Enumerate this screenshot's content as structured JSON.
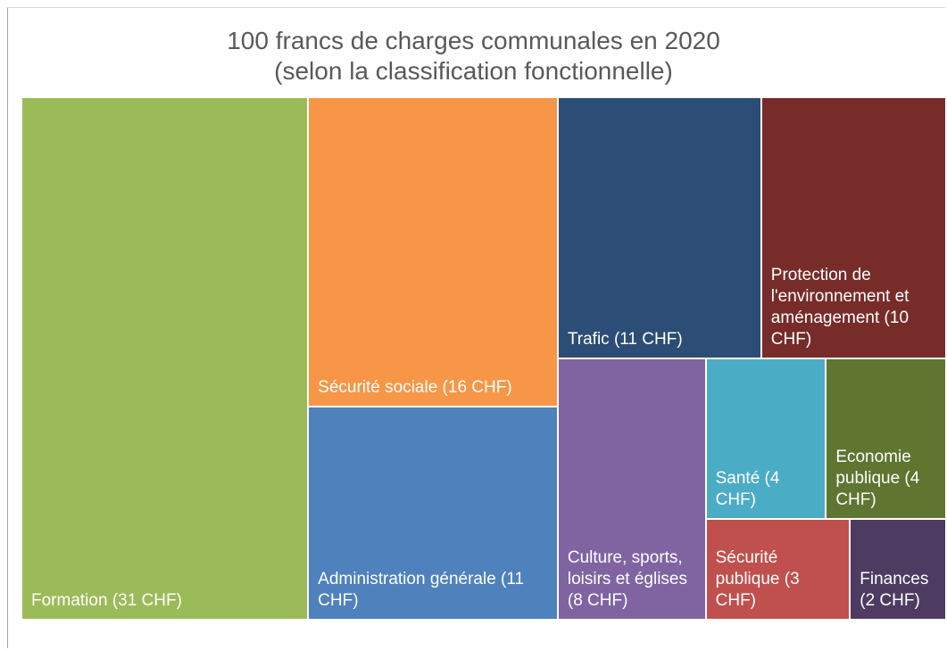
{
  "chart_data": {
    "type": "treemap",
    "title": "100 francs de charges communales en 2020",
    "subtitle": "(selon la classification fonctionnelle)",
    "labels": [
      "Formation (31 CHF)",
      "Sécurité sociale (16 CHF)",
      "Administration générale (11 CHF)",
      "Trafic (11 CHF)",
      "Protection de l'environnement et aménagement (10 CHF)",
      "Culture, sports, loisirs et églises (8 CHF)",
      "Santé (4 CHF)",
      "Economie publique (4 CHF)",
      "Sécurité publique (3 CHF)",
      "Finances (2 CHF)"
    ],
    "values": [
      31,
      16,
      11,
      11,
      10,
      8,
      4,
      4,
      3,
      2
    ],
    "colors": [
      "#9bbb59",
      "#f79646",
      "#4f81bd",
      "#2c4d75",
      "#772c2a",
      "#8064a2",
      "#4bacc6",
      "#5f7530",
      "#c0504d",
      "#4d3b62"
    ]
  }
}
